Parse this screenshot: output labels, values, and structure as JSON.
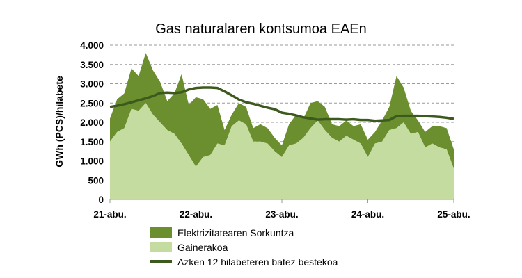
{
  "chart_data": {
    "type": "area",
    "title": "Gas naturalaren kontsumoa EAEn",
    "ylabel": "GWh (PCS)/hilabete",
    "xlabel": "",
    "ylim": [
      0,
      4000
    ],
    "yticks": [
      0,
      500,
      1000,
      1500,
      2000,
      2500,
      3000,
      3500,
      4000
    ],
    "ytick_labels": [
      "0",
      "500",
      "1.000",
      "1.500",
      "2.000",
      "2.500",
      "3.000",
      "3.500",
      "4.000"
    ],
    "xlim": [
      0,
      48
    ],
    "xticks": [
      0,
      12,
      24,
      36,
      48
    ],
    "xtick_labels": [
      "21-abu.",
      "22-abu.",
      "23-abu.",
      "24-abu.",
      "25-abu."
    ],
    "grid": true,
    "legend_position": "bottom",
    "x": [
      0,
      1,
      2,
      3,
      4,
      5,
      6,
      7,
      8,
      9,
      10,
      11,
      12,
      13,
      14,
      15,
      16,
      17,
      18,
      19,
      20,
      21,
      22,
      23,
      24,
      25,
      26,
      27,
      28,
      29,
      30,
      31,
      32,
      33,
      34,
      35,
      36,
      37,
      38,
      39,
      40,
      41,
      42,
      43,
      44,
      45,
      46,
      47,
      48
    ],
    "series": [
      {
        "name": "Elektrizitatearen Sorkuntza",
        "kind": "stacked-area",
        "color": "#6b8e2e",
        "values": [
          600,
          850,
          900,
          1050,
          900,
          1300,
          1150,
          1050,
          750,
          1050,
          1800,
          1300,
          1800,
          1500,
          1200,
          1000,
          400,
          300,
          450,
          450,
          350,
          450,
          400,
          350,
          300,
          550,
          750,
          500,
          650,
          500,
          600,
          350,
          400,
          400,
          350,
          500,
          450,
          300,
          550,
          600,
          1350,
          900,
          600,
          300,
          400,
          450,
          550,
          550,
          500
        ]
      },
      {
        "name": "Gainerakoa",
        "kind": "stacked-area",
        "color": "#c4dca0",
        "values": [
          1500,
          1750,
          1850,
          2350,
          2300,
          2500,
          2200,
          2000,
          1800,
          1700,
          1450,
          1150,
          850,
          1100,
          1150,
          1450,
          1400,
          1900,
          2050,
          1950,
          1500,
          1500,
          1450,
          1250,
          1100,
          1400,
          1450,
          1600,
          1850,
          2050,
          1800,
          1600,
          1500,
          1650,
          1550,
          1450,
          1100,
          1450,
          1500,
          1800,
          1850,
          2000,
          1700,
          1750,
          1350,
          1450,
          1350,
          1300,
          800
        ]
      },
      {
        "name": "Azken 12 hilabeteren batez bestekoa",
        "kind": "line",
        "color": "#3d5a1e",
        "values": [
          2400,
          2430,
          2470,
          2520,
          2570,
          2620,
          2680,
          2760,
          2770,
          2760,
          2780,
          2850,
          2890,
          2900,
          2900,
          2890,
          2800,
          2700,
          2590,
          2520,
          2480,
          2430,
          2380,
          2340,
          2250,
          2220,
          2180,
          2130,
          2100,
          2070,
          2080,
          2080,
          2080,
          2070,
          2080,
          2060,
          2060,
          2040,
          2050,
          2060,
          2160,
          2170,
          2170,
          2170,
          2160,
          2150,
          2140,
          2120,
          2090
        ]
      }
    ]
  }
}
